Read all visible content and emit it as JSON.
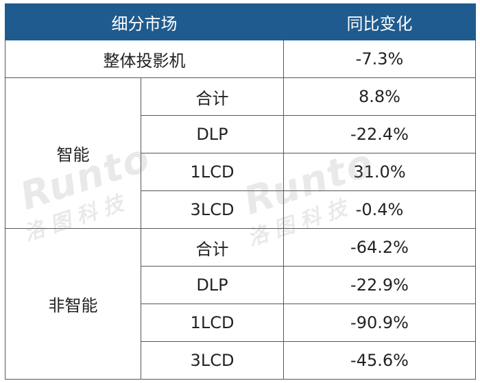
{
  "header": {
    "col1": "细分市场",
    "col2": "同比变化"
  },
  "overall": {
    "label": "整体投影机",
    "value": "-7.3%"
  },
  "groups": [
    {
      "name": "智能",
      "rows": [
        {
          "label": "合计",
          "value": "8.8%"
        },
        {
          "label": "DLP",
          "value": "-22.4%"
        },
        {
          "label": "1LCD",
          "value": "31.0%"
        },
        {
          "label": "3LCD",
          "value": "-0.4%"
        }
      ]
    },
    {
      "name": "非智能",
      "rows": [
        {
          "label": "合计",
          "value": "-64.2%"
        },
        {
          "label": "DLP",
          "value": "-22.9%"
        },
        {
          "label": "1LCD",
          "value": "-90.9%"
        },
        {
          "label": "3LCD",
          "value": "-45.6%"
        }
      ]
    }
  ],
  "watermark": {
    "word": "Runto",
    "cn": "洛图科技"
  }
}
